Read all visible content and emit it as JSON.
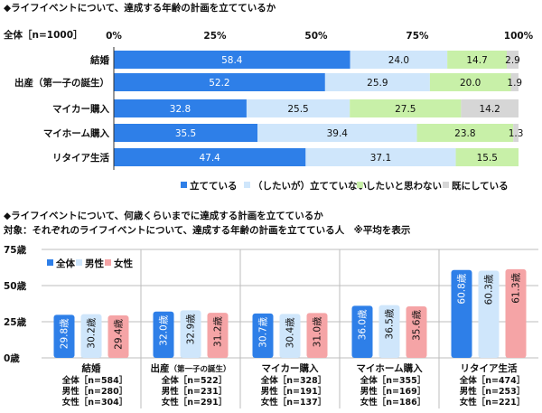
{
  "chart_data": [
    {
      "type": "bar",
      "orientation": "horizontal",
      "stacked": true,
      "title": "◆ライフイベントについて、達成する年齢の計画を立てているか",
      "base_label": "全体［n=1000］",
      "xlim": [
        0,
        100
      ],
      "tick_labels": [
        "0%",
        "25%",
        "50%",
        "75%",
        "100%"
      ],
      "categories": [
        "結婚",
        "出産（第一子の誕生）",
        "マイカー購入",
        "マイホーム購入",
        "リタイア生活"
      ],
      "series": [
        {
          "name": "立てている",
          "color": "#2e7fe8",
          "values": [
            58.4,
            52.2,
            32.8,
            35.5,
            47.4
          ]
        },
        {
          "name": "（したいが）立てていない",
          "color": "#cfe6fb",
          "values": [
            24.0,
            25.9,
            25.5,
            39.4,
            37.1
          ]
        },
        {
          "name": "したいと思わない",
          "color": "#c8f0a8",
          "values": [
            14.7,
            20.0,
            27.5,
            23.8,
            15.5
          ]
        },
        {
          "name": "既にしている",
          "color": "#d6d6d6",
          "values": [
            2.9,
            1.9,
            14.2,
            1.3,
            0
          ]
        }
      ],
      "value_labels": [
        [
          "58.4",
          "24.0",
          "14.7",
          "2.9"
        ],
        [
          "52.2",
          "25.9",
          "20.0",
          "1.9"
        ],
        [
          "32.8",
          "25.5",
          "27.5",
          "14.2"
        ],
        [
          "35.5",
          "39.4",
          "23.8",
          "1.3"
        ],
        [
          "47.4",
          "37.1",
          "15.5",
          ""
        ]
      ],
      "legend_position": "bottom",
      "grid": false
    },
    {
      "type": "bar",
      "orientation": "vertical",
      "title": "◆ライフイベントについて、何歳くらいまでに達成する計画を立てているか",
      "subtitle": "対象：それぞれのライフイベントについて、達成する年齢の計画を立てている人　※平均を表示",
      "ylim": [
        0,
        75
      ],
      "yticks": [
        "75歳",
        "50歳",
        "25歳",
        "0歳"
      ],
      "categories": [
        "結婚",
        "出産（第一子の誕生）",
        "マイカー購入",
        "マイホーム購入",
        "リタイア生活"
      ],
      "category_labels": [
        "結婚",
        "出産",
        "マイカー購入",
        "マイホーム購入",
        "リタイア生活"
      ],
      "category_sublabels": [
        "",
        "（第一子の誕生）",
        "",
        "",
        ""
      ],
      "series": [
        {
          "name": "全体",
          "color": "#2e7fe8",
          "values": [
            29.8,
            32.0,
            30.7,
            36.0,
            60.8
          ],
          "labels": [
            "29.8歳",
            "32.0歳",
            "30.7歳",
            "36.0歳",
            "60.8歳"
          ]
        },
        {
          "name": "男性",
          "color": "#cfe6fb",
          "values": [
            30.2,
            32.9,
            30.4,
            36.5,
            60.3
          ],
          "labels": [
            "30.2歳",
            "32.9歳",
            "30.4歳",
            "36.5歳",
            "60.3歳"
          ]
        },
        {
          "name": "女性",
          "color": "#f5a4a6",
          "values": [
            29.4,
            31.2,
            31.0,
            35.6,
            61.3
          ],
          "labels": [
            "29.4歳",
            "31.2歳",
            "31.0歳",
            "35.6歳",
            "61.3歳"
          ]
        }
      ],
      "sample_sizes": [
        [
          "全体［n=584］",
          "男性［n=280］",
          "女性［n=304］"
        ],
        [
          "全体［n=522］",
          "男性［n=231］",
          "女性［n=291］"
        ],
        [
          "全体［n=328］",
          "男性［n=191］",
          "女性［n=137］"
        ],
        [
          "全体［n=355］",
          "男性［n=169］",
          "女性［n=186］"
        ],
        [
          "全体［n=474］",
          "男性［n=253］",
          "女性［n=221］"
        ]
      ],
      "legend_position": "top-left",
      "grid": true
    }
  ]
}
